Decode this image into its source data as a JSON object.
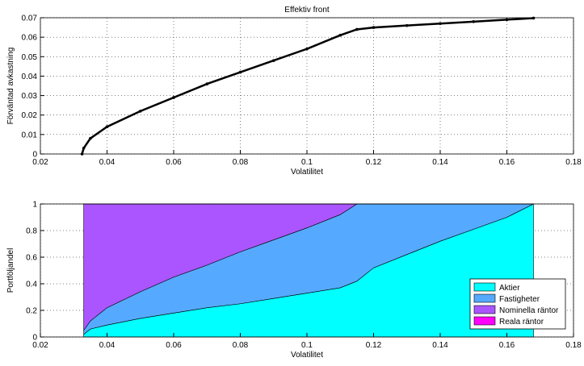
{
  "chart_data": [
    {
      "type": "line",
      "title": "Effektiv front",
      "xlabel": "Volatilitet",
      "ylabel": "Förväntad avkastning",
      "x": [
        0.0325,
        0.033,
        0.035,
        0.04,
        0.05,
        0.06,
        0.07,
        0.08,
        0.09,
        0.1,
        0.11,
        0.115,
        0.12,
        0.13,
        0.14,
        0.15,
        0.16,
        0.168
      ],
      "values": [
        0,
        0.003,
        0.008,
        0.014,
        0.022,
        0.029,
        0.036,
        0.042,
        0.048,
        0.054,
        0.061,
        0.064,
        0.065,
        0.066,
        0.067,
        0.068,
        0.069,
        0.0698
      ],
      "color": "#000000",
      "xlim": [
        0.02,
        0.18
      ],
      "xticks": [
        0.02,
        0.04,
        0.06,
        0.08,
        0.1,
        0.12,
        0.14,
        0.16,
        0.18
      ],
      "ylim": [
        0,
        0.07
      ],
      "yticks": [
        0,
        0.01,
        0.02,
        0.03,
        0.04,
        0.05,
        0.06,
        0.07
      ],
      "grid": true
    },
    {
      "type": "stacked-area",
      "xlabel": "Volatilitet",
      "ylabel": "Portföljandel",
      "x": [
        0.033,
        0.035,
        0.04,
        0.05,
        0.06,
        0.07,
        0.08,
        0.09,
        0.1,
        0.11,
        0.115,
        0.12,
        0.13,
        0.14,
        0.15,
        0.16,
        0.168
      ],
      "series": [
        {
          "name": "Aktier",
          "color": "#00ffff",
          "values": [
            0.02,
            0.06,
            0.09,
            0.14,
            0.18,
            0.22,
            0.25,
            0.29,
            0.33,
            0.37,
            0.42,
            0.52,
            0.62,
            0.72,
            0.81,
            0.9,
            1.0
          ]
        },
        {
          "name": "Fastigheter",
          "color": "#55aaff",
          "values": [
            0.03,
            0.06,
            0.13,
            0.2,
            0.27,
            0.32,
            0.39,
            0.44,
            0.49,
            0.55,
            0.58,
            0.48,
            0.38,
            0.28,
            0.19,
            0.1,
            0
          ]
        },
        {
          "name": "Nominella räntor",
          "color": "#aa55ff",
          "values": [
            0.95,
            0.88,
            0.78,
            0.66,
            0.55,
            0.46,
            0.36,
            0.27,
            0.18,
            0.08,
            0,
            0,
            0,
            0,
            0,
            0,
            0
          ]
        },
        {
          "name": "Reala räntor",
          "color": "#ff00ff",
          "values": [
            0,
            0,
            0,
            0,
            0,
            0,
            0,
            0,
            0,
            0,
            0,
            0,
            0,
            0,
            0,
            0,
            0
          ]
        }
      ],
      "xlim": [
        0.02,
        0.18
      ],
      "xticks": [
        0.02,
        0.04,
        0.06,
        0.08,
        0.1,
        0.12,
        0.14,
        0.16,
        0.18
      ],
      "ylim": [
        0,
        1
      ],
      "yticks": [
        0,
        0.2,
        0.4,
        0.6,
        0.8,
        1
      ],
      "grid": true,
      "legend": "southeast"
    }
  ]
}
